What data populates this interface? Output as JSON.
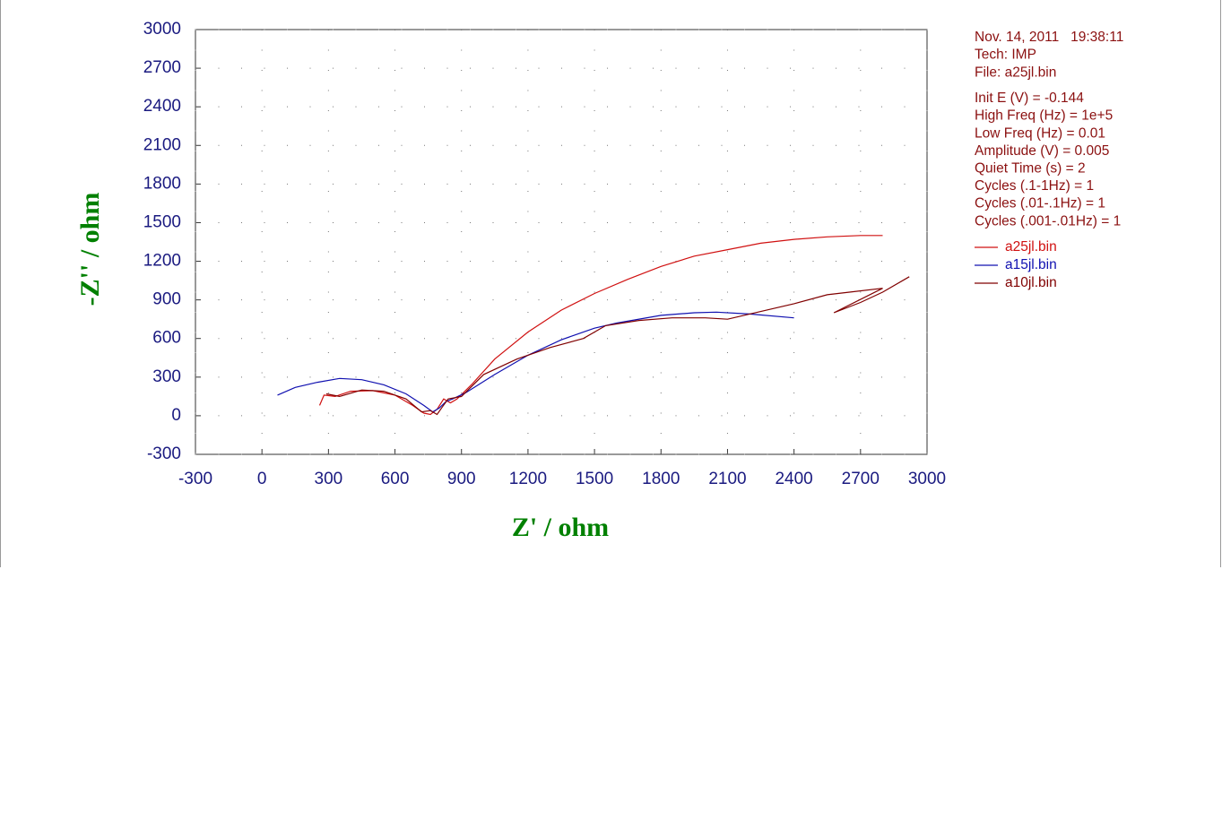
{
  "chart_data": {
    "type": "line",
    "xlabel": "Z' / ohm",
    "ylabel": "-Z'' / ohm",
    "xlim": [
      -300,
      3000
    ],
    "ylim": [
      -300,
      3000
    ],
    "xticks": [
      -300,
      0,
      300,
      600,
      900,
      1200,
      1500,
      1800,
      2100,
      2400,
      2700,
      3000
    ],
    "yticks": [
      -300,
      0,
      300,
      600,
      900,
      1200,
      1500,
      1800,
      2100,
      2400,
      2700,
      3000
    ],
    "grid": true,
    "header": [
      "Nov. 14, 2011   19:38:11",
      "Tech: IMP",
      "File: a25jl.bin"
    ],
    "parameters": [
      "Init E (V) = -0.144",
      "High Freq (Hz) = 1e+5",
      "Low Freq (Hz) = 0.01",
      "Amplitude (V) = 0.005",
      "Quiet Time (s) = 2",
      "Cycles (.1-1Hz) = 1",
      "Cycles (.01-.1Hz) = 1",
      "Cycles (.001-.01Hz) = 1"
    ],
    "series": [
      {
        "name": "a25jl.bin",
        "color": "#d01010",
        "x": [
          260,
          280,
          330,
          400,
          500,
          600,
          680,
          730,
          760,
          790,
          820,
          850,
          880,
          950,
          1050,
          1200,
          1350,
          1500,
          1650,
          1800,
          1950,
          2100,
          2250,
          2400,
          2550,
          2700,
          2800
        ],
        "values": [
          80,
          160,
          150,
          190,
          195,
          160,
          80,
          20,
          10,
          50,
          130,
          100,
          130,
          250,
          440,
          650,
          820,
          950,
          1060,
          1160,
          1240,
          1290,
          1340,
          1370,
          1390,
          1400,
          1400
        ]
      },
      {
        "name": "a15jl.bin",
        "color": "#1010b0",
        "x": [
          70,
          150,
          250,
          350,
          450,
          550,
          650,
          730,
          770,
          800,
          830,
          860,
          920,
          1050,
          1200,
          1350,
          1500,
          1600,
          1800,
          1950,
          2050,
          2200,
          2400
        ],
        "values": [
          160,
          220,
          260,
          290,
          280,
          240,
          170,
          80,
          30,
          60,
          110,
          130,
          180,
          320,
          470,
          590,
          680,
          720,
          780,
          800,
          805,
          790,
          760
        ]
      },
      {
        "name": "a10jl.bin",
        "color": "#800000",
        "x": [
          290,
          350,
          450,
          550,
          650,
          720,
          760,
          790,
          810,
          840,
          900,
          1000,
          1150,
          1300,
          1450,
          1550,
          1700,
          1850,
          2000,
          2100,
          2250,
          2400,
          2550,
          2650,
          2800,
          2580,
          2700,
          2800,
          2920
        ],
        "values": [
          170,
          150,
          200,
          190,
          130,
          30,
          40,
          10,
          60,
          130,
          150,
          320,
          440,
          530,
          600,
          700,
          740,
          760,
          760,
          750,
          810,
          870,
          940,
          960,
          990,
          800,
          880,
          960,
          1080
        ]
      }
    ]
  }
}
